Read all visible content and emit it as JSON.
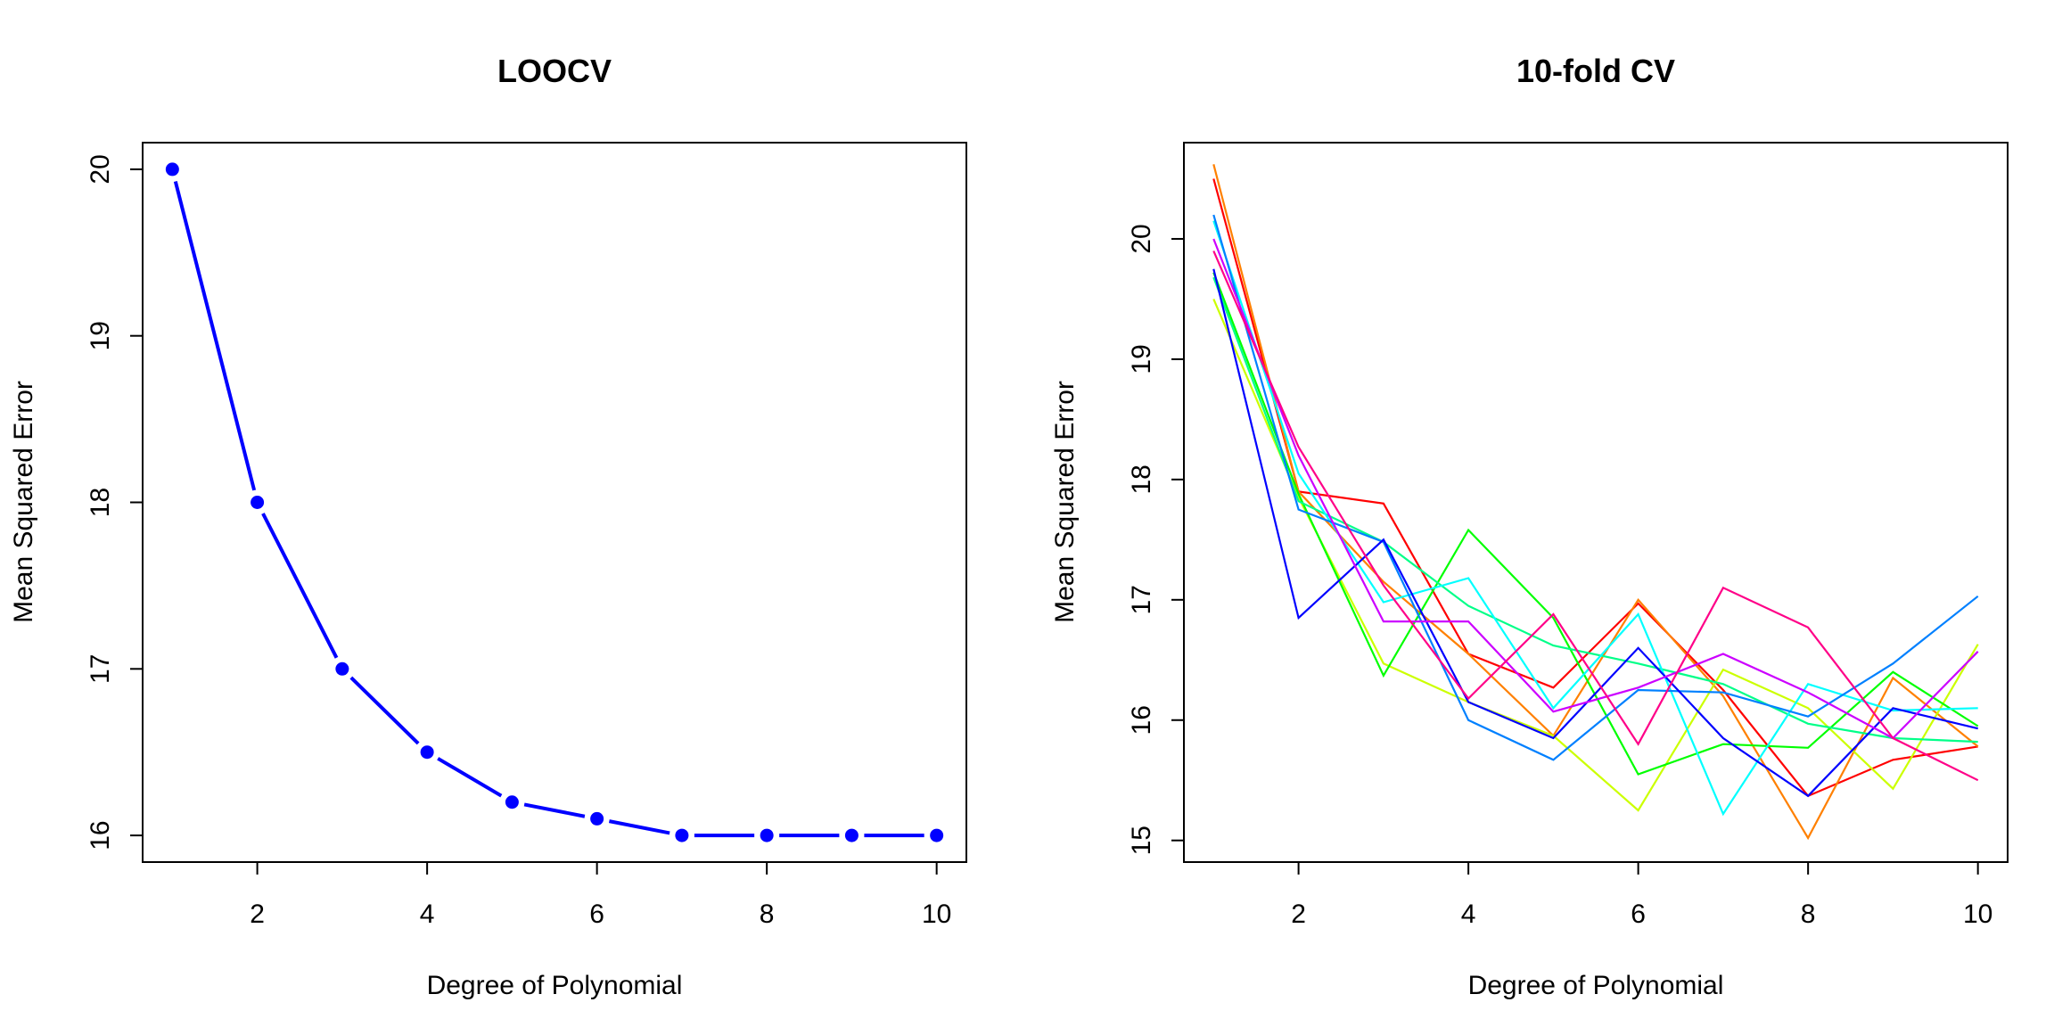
{
  "chart_data": [
    {
      "type": "line",
      "title": "LOOCV",
      "xlabel": "Degree of Polynomial",
      "ylabel": "Mean Squared Error",
      "x": [
        1,
        2,
        3,
        4,
        5,
        6,
        7,
        8,
        9,
        10
      ],
      "x_ticks": [
        "2",
        "4",
        "6",
        "8",
        "10"
      ],
      "y_ticks": [
        "16",
        "17",
        "18",
        "19",
        "20"
      ],
      "xlim": [
        0.65,
        10.35
      ],
      "ylim": [
        15.84,
        20.16
      ],
      "grid": false,
      "markers": true,
      "series": [
        {
          "color": "#0000ff",
          "values": [
            20.0,
            18.0,
            17.0,
            16.5,
            16.2,
            16.1,
            16.0,
            16.0,
            16.0,
            16.0
          ]
        }
      ]
    },
    {
      "type": "line",
      "title": "10-fold CV",
      "xlabel": "Degree of Polynomial",
      "ylabel": "Mean Squared Error",
      "x": [
        1,
        2,
        3,
        4,
        5,
        6,
        7,
        8,
        9,
        10
      ],
      "x_ticks": [
        "2",
        "4",
        "6",
        "8",
        "10"
      ],
      "y_ticks": [
        "15",
        "16",
        "17",
        "18",
        "19",
        "20"
      ],
      "xlim": [
        0.65,
        10.35
      ],
      "ylim": [
        14.82,
        20.8
      ],
      "grid": false,
      "markers": false,
      "series": [
        {
          "color": "#ff0000",
          "values": [
            20.5,
            17.9,
            17.8,
            16.55,
            16.27,
            16.97,
            16.25,
            15.37,
            15.67,
            15.78
          ]
        },
        {
          "color": "#ff8000",
          "values": [
            20.62,
            17.9,
            17.15,
            16.55,
            15.87,
            17.0,
            16.2,
            15.02,
            16.35,
            15.78
          ]
        },
        {
          "color": "#ccff00",
          "values": [
            19.5,
            17.85,
            16.47,
            16.15,
            15.87,
            15.25,
            16.42,
            16.1,
            15.43,
            16.63
          ]
        },
        {
          "color": "#00ff00",
          "values": [
            19.72,
            17.88,
            16.37,
            17.58,
            16.85,
            15.55,
            15.8,
            15.77,
            16.4,
            15.95
          ]
        },
        {
          "color": "#00ff88",
          "values": [
            19.68,
            17.82,
            17.48,
            16.95,
            16.62,
            16.47,
            16.3,
            15.97,
            15.85,
            15.82
          ]
        },
        {
          "color": "#00ffff",
          "values": [
            20.15,
            18.05,
            16.98,
            17.18,
            16.1,
            16.88,
            15.22,
            16.3,
            16.08,
            16.1
          ]
        },
        {
          "color": "#0080ff",
          "values": [
            20.2,
            17.75,
            17.48,
            16.0,
            15.67,
            16.25,
            16.23,
            16.03,
            16.47,
            17.03
          ]
        },
        {
          "color": "#0000ff",
          "values": [
            19.75,
            16.85,
            17.5,
            16.15,
            15.85,
            16.6,
            15.85,
            15.37,
            16.1,
            15.93
          ]
        },
        {
          "color": "#cc00ff",
          "values": [
            20.0,
            18.2,
            16.82,
            16.82,
            16.07,
            16.27,
            16.55,
            16.23,
            15.85,
            16.57
          ]
        },
        {
          "color": "#ff0088",
          "values": [
            19.9,
            18.27,
            17.12,
            16.18,
            16.88,
            15.8,
            17.1,
            16.77,
            15.85,
            15.5
          ]
        }
      ]
    }
  ]
}
